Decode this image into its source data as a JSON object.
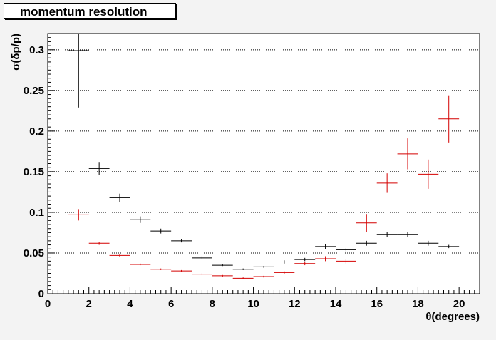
{
  "chart_data": {
    "type": "scatter",
    "title": "momentum resolution",
    "xlabel": "θ(degrees)",
    "ylabel": "σ(δp/p)",
    "xlim": [
      0,
      21
    ],
    "ylim": [
      0,
      0.32
    ],
    "x_ticks": [
      "0",
      "2",
      "4",
      "6",
      "8",
      "10",
      "12",
      "14",
      "16",
      "18",
      "20"
    ],
    "y_ticks": [
      "0",
      "0.05",
      "0.1",
      "0.15",
      "0.2",
      "0.25",
      "0.3"
    ],
    "grid": "horizontal dotted",
    "series": [
      {
        "color": "#000000",
        "points": [
          {
            "x": 1.5,
            "y": 0.299,
            "xerr": 0.5,
            "yerr": 0.07
          },
          {
            "x": 2.5,
            "y": 0.154,
            "xerr": 0.5,
            "yerr": 0.008
          },
          {
            "x": 3.5,
            "y": 0.118,
            "xerr": 0.5,
            "yerr": 0.005
          },
          {
            "x": 4.5,
            "y": 0.091,
            "xerr": 0.5,
            "yerr": 0.004
          },
          {
            "x": 5.5,
            "y": 0.077,
            "xerr": 0.5,
            "yerr": 0.003
          },
          {
            "x": 6.5,
            "y": 0.065,
            "xerr": 0.5,
            "yerr": 0.002
          },
          {
            "x": 7.5,
            "y": 0.044,
            "xerr": 0.5,
            "yerr": 0.002
          },
          {
            "x": 8.5,
            "y": 0.035,
            "xerr": 0.5,
            "yerr": 0.001
          },
          {
            "x": 9.5,
            "y": 0.03,
            "xerr": 0.5,
            "yerr": 0.001
          },
          {
            "x": 10.5,
            "y": 0.033,
            "xerr": 0.5,
            "yerr": 0.001
          },
          {
            "x": 11.5,
            "y": 0.039,
            "xerr": 0.5,
            "yerr": 0.002
          },
          {
            "x": 12.5,
            "y": 0.042,
            "xerr": 0.5,
            "yerr": 0.002
          },
          {
            "x": 13.5,
            "y": 0.058,
            "xerr": 0.5,
            "yerr": 0.003
          },
          {
            "x": 14.5,
            "y": 0.054,
            "xerr": 0.5,
            "yerr": 0.002
          },
          {
            "x": 15.5,
            "y": 0.062,
            "xerr": 0.5,
            "yerr": 0.003
          },
          {
            "x": 16.5,
            "y": 0.073,
            "xerr": 0.5,
            "yerr": 0.003
          },
          {
            "x": 17.5,
            "y": 0.073,
            "xerr": 0.5,
            "yerr": 0.003
          },
          {
            "x": 18.5,
            "y": 0.062,
            "xerr": 0.5,
            "yerr": 0.003
          },
          {
            "x": 19.5,
            "y": 0.058,
            "xerr": 0.5,
            "yerr": 0.002
          }
        ]
      },
      {
        "color": "#d40000",
        "points": [
          {
            "x": 1.5,
            "y": 0.097,
            "xerr": 0.5,
            "yerr": 0.007
          },
          {
            "x": 2.5,
            "y": 0.062,
            "xerr": 0.5,
            "yerr": 0.002
          },
          {
            "x": 3.5,
            "y": 0.047,
            "xerr": 0.5,
            "yerr": 0.0015
          },
          {
            "x": 4.5,
            "y": 0.036,
            "xerr": 0.5,
            "yerr": 0.001
          },
          {
            "x": 5.5,
            "y": 0.03,
            "xerr": 0.5,
            "yerr": 0.001
          },
          {
            "x": 6.5,
            "y": 0.028,
            "xerr": 0.5,
            "yerr": 0.001
          },
          {
            "x": 7.5,
            "y": 0.024,
            "xerr": 0.5,
            "yerr": 0.001
          },
          {
            "x": 8.5,
            "y": 0.022,
            "xerr": 0.5,
            "yerr": 0.001
          },
          {
            "x": 9.5,
            "y": 0.019,
            "xerr": 0.5,
            "yerr": 0.001
          },
          {
            "x": 10.5,
            "y": 0.021,
            "xerr": 0.5,
            "yerr": 0.001
          },
          {
            "x": 11.5,
            "y": 0.026,
            "xerr": 0.5,
            "yerr": 0.0015
          },
          {
            "x": 12.5,
            "y": 0.037,
            "xerr": 0.5,
            "yerr": 0.002
          },
          {
            "x": 13.5,
            "y": 0.043,
            "xerr": 0.5,
            "yerr": 0.003
          },
          {
            "x": 14.5,
            "y": 0.04,
            "xerr": 0.5,
            "yerr": 0.003
          },
          {
            "x": 15.5,
            "y": 0.087,
            "xerr": 0.5,
            "yerr": 0.011
          },
          {
            "x": 16.5,
            "y": 0.136,
            "xerr": 0.5,
            "yerr": 0.012
          },
          {
            "x": 17.5,
            "y": 0.172,
            "xerr": 0.5,
            "yerr": 0.019
          },
          {
            "x": 18.5,
            "y": 0.147,
            "xerr": 0.5,
            "yerr": 0.018
          },
          {
            "x": 19.5,
            "y": 0.215,
            "xerr": 0.5,
            "yerr": 0.029
          }
        ]
      }
    ]
  }
}
